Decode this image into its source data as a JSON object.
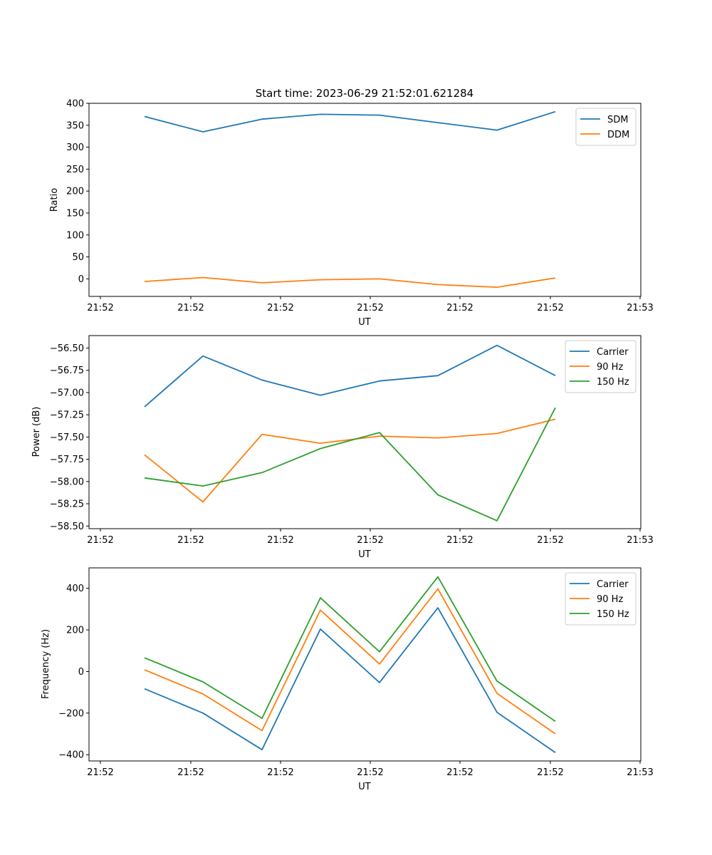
{
  "figure": {
    "title": "Start time: 2023-06-29 21:52:01.621284"
  },
  "colors": {
    "blue": "#1f77b4",
    "orange": "#ff7f0e",
    "green": "#2ca02c"
  },
  "chart_data": [
    {
      "type": "line",
      "xlabel": "UT",
      "ylabel": "Ratio",
      "x_ticks": [
        "21:52",
        "21:52",
        "21:52",
        "21:52",
        "21:52",
        "21:52",
        "21:53"
      ],
      "ylim": [
        -40,
        400
      ],
      "y_ticks": [
        0,
        50,
        100,
        150,
        200,
        250,
        300,
        350,
        400
      ],
      "legend": "top-right",
      "grid": false,
      "series": [
        {
          "name": "SDM",
          "color": "#1f77b4",
          "values": [
            370,
            335,
            364,
            375,
            373,
            356,
            339,
            381
          ]
        },
        {
          "name": "DDM",
          "color": "#ff7f0e",
          "values": [
            -6,
            3,
            -9,
            -2,
            0,
            -13,
            -19,
            2
          ]
        }
      ]
    },
    {
      "type": "line",
      "xlabel": "UT",
      "ylabel": "Power (dB)",
      "x_ticks": [
        "21:52",
        "21:52",
        "21:52",
        "21:52",
        "21:52",
        "21:52",
        "21:53"
      ],
      "ylim": [
        -58.53,
        -56.36
      ],
      "y_ticks": [
        "−58.50",
        "−58.25",
        "−58.00",
        "−57.75",
        "−57.50",
        "−57.25",
        "−57.00",
        "−56.75",
        "−56.50"
      ],
      "y_tick_values": [
        -58.5,
        -58.25,
        -58.0,
        -57.75,
        -57.5,
        -57.25,
        -57.0,
        -56.75,
        -56.5
      ],
      "legend": "top-right",
      "grid": false,
      "series": [
        {
          "name": "Carrier",
          "color": "#1f77b4",
          "values": [
            -57.16,
            -56.59,
            -56.86,
            -57.03,
            -56.87,
            -56.81,
            -56.47,
            -56.81
          ]
        },
        {
          "name": "90 Hz",
          "color": "#ff7f0e",
          "values": [
            -57.7,
            -58.23,
            -57.47,
            -57.57,
            -57.49,
            -57.51,
            -57.46,
            -57.3
          ]
        },
        {
          "name": "150 Hz",
          "color": "#2ca02c",
          "values": [
            -57.96,
            -58.05,
            -57.9,
            -57.63,
            -57.45,
            -58.15,
            -58.44,
            -57.17
          ]
        }
      ]
    },
    {
      "type": "line",
      "xlabel": "UT",
      "ylabel": "Frequency (Hz)",
      "x_ticks": [
        "21:52",
        "21:52",
        "21:52",
        "21:52",
        "21:52",
        "21:52",
        "21:53"
      ],
      "ylim": [
        -430,
        498
      ],
      "y_ticks": [
        "−400",
        "−200",
        "0",
        "200",
        "400"
      ],
      "y_tick_values": [
        -400,
        -200,
        0,
        200,
        400
      ],
      "legend": "top-right",
      "grid": false,
      "series": [
        {
          "name": "Carrier",
          "color": "#1f77b4",
          "values": [
            -83,
            -200,
            -376,
            204,
            -53,
            306,
            -196,
            -390
          ]
        },
        {
          "name": "90 Hz",
          "color": "#ff7f0e",
          "values": [
            8,
            -108,
            -284,
            295,
            36,
            397,
            -105,
            -300
          ]
        },
        {
          "name": "150 Hz",
          "color": "#2ca02c",
          "values": [
            66,
            -50,
            -225,
            354,
            95,
            455,
            -46,
            -240
          ]
        }
      ]
    }
  ]
}
